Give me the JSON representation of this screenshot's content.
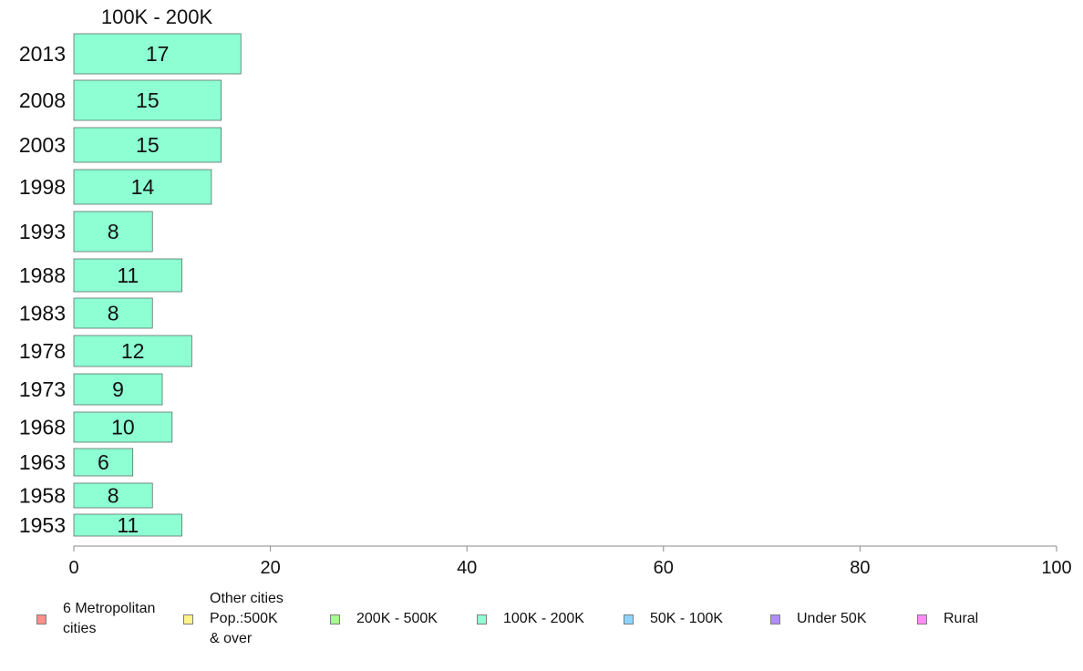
{
  "chart_data": {
    "type": "bar",
    "orientation": "horizontal",
    "panel_title": "100K - 200K",
    "categories": [
      "2013",
      "2008",
      "2003",
      "1998",
      "1993",
      "1988",
      "1983",
      "1978",
      "1973",
      "1968",
      "1963",
      "1958",
      "1953"
    ],
    "values": [
      17,
      15,
      15,
      14,
      8,
      11,
      8,
      12,
      9,
      10,
      6,
      8,
      11
    ],
    "bar_color": "#8dffd3",
    "x_range": [
      0,
      100
    ],
    "x_ticks": [
      "0",
      "20",
      "40",
      "60",
      "80",
      "100"
    ],
    "grid": false,
    "legend_position": "bottom",
    "legend": [
      {
        "label": "6 Metropolitan\n cities",
        "color": "#ff8f8a"
      },
      {
        "label": "Other cities\nPop.:500K\n & over",
        "color": "#fff38a"
      },
      {
        "label": "200K - 500K",
        "color": "#a6ff8a"
      },
      {
        "label": "100K - 200K",
        "color": "#8dffd3"
      },
      {
        "label": "50K - 100K",
        "color": "#8dd4ff"
      },
      {
        "label": "Under 50K",
        "color": "#b08cff"
      },
      {
        "label": "Rural",
        "color": "#ff8df2"
      }
    ]
  }
}
